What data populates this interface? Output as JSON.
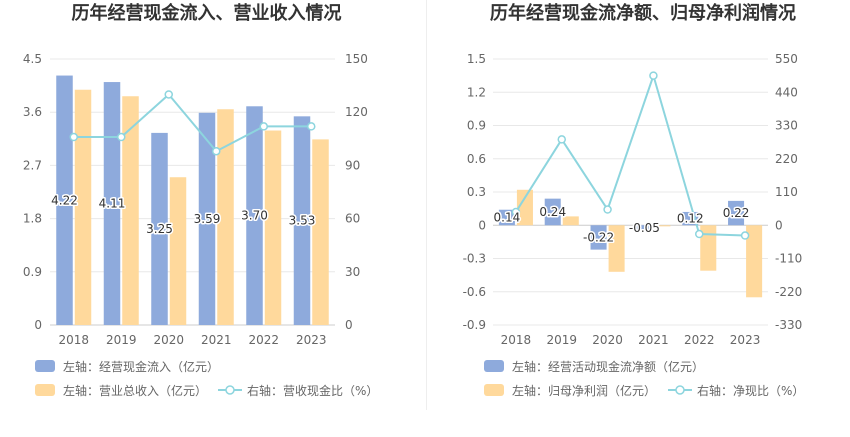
{
  "chart_data": [
    {
      "type": "bar",
      "title": "历年经营现金流入、营业收入情况",
      "categories": [
        "2018",
        "2019",
        "2020",
        "2021",
        "2022",
        "2023"
      ],
      "left_axis": {
        "min": 0,
        "max": 4.5,
        "ticks": [
          0,
          0.9,
          1.8,
          2.7,
          3.6,
          4.5
        ]
      },
      "right_axis": {
        "min": 0,
        "max": 150,
        "ticks": [
          0,
          30,
          60,
          90,
          120,
          150
        ]
      },
      "series": [
        {
          "name": "左轴：经营现金流入（亿元）",
          "type": "bar",
          "axis": "left",
          "color": "#8eaadc",
          "values": [
            4.22,
            4.11,
            3.25,
            3.59,
            3.7,
            3.53
          ],
          "data_labels": [
            "4.22",
            "4.11",
            "3.25",
            "3.59",
            "3.70",
            "3.53"
          ]
        },
        {
          "name": "左轴：营业总收入（亿元）",
          "type": "bar",
          "axis": "left",
          "color": "#ffd99c",
          "values": [
            3.98,
            3.87,
            2.5,
            3.65,
            3.29,
            3.14
          ]
        },
        {
          "name": "右轴：营收现金比（%）",
          "type": "line",
          "axis": "right",
          "color": "#8dd5de",
          "values": [
            106,
            106,
            130,
            98,
            112,
            112
          ]
        }
      ],
      "grid": true,
      "legend": "bottom-left"
    },
    {
      "type": "bar",
      "title": "历年经营现金流净额、归母净利润情况",
      "categories": [
        "2018",
        "2019",
        "2020",
        "2021",
        "2022",
        "2023"
      ],
      "left_axis": {
        "min": -0.9,
        "max": 1.5,
        "ticks": [
          -0.9,
          -0.6,
          -0.3,
          0,
          0.3,
          0.6,
          0.9,
          1.2,
          1.5
        ]
      },
      "right_axis": {
        "min": -330,
        "max": 550,
        "ticks": [
          -330,
          -220,
          -110,
          0,
          110,
          220,
          330,
          440,
          550
        ]
      },
      "series": [
        {
          "name": "左轴：经营活动现金流净额（亿元）",
          "type": "bar",
          "axis": "left",
          "color": "#8eaadc",
          "values": [
            0.14,
            0.24,
            -0.22,
            -0.05,
            0.12,
            0.22
          ],
          "data_labels": [
            "0.14",
            "0.24",
            "-0.22",
            "-0.05",
            "0.12",
            "0.22"
          ]
        },
        {
          "name": "左轴：归母净利润（亿元）",
          "type": "bar",
          "axis": "left",
          "color": "#ffd99c",
          "values": [
            0.32,
            0.08,
            -0.42,
            -0.01,
            -0.41,
            -0.65
          ]
        },
        {
          "name": "右轴：净现比（%）",
          "type": "line",
          "axis": "right",
          "color": "#8dd5de",
          "values": [
            44,
            284,
            52,
            495,
            -29,
            -34
          ]
        }
      ],
      "grid": true,
      "legend": "bottom-left"
    }
  ]
}
